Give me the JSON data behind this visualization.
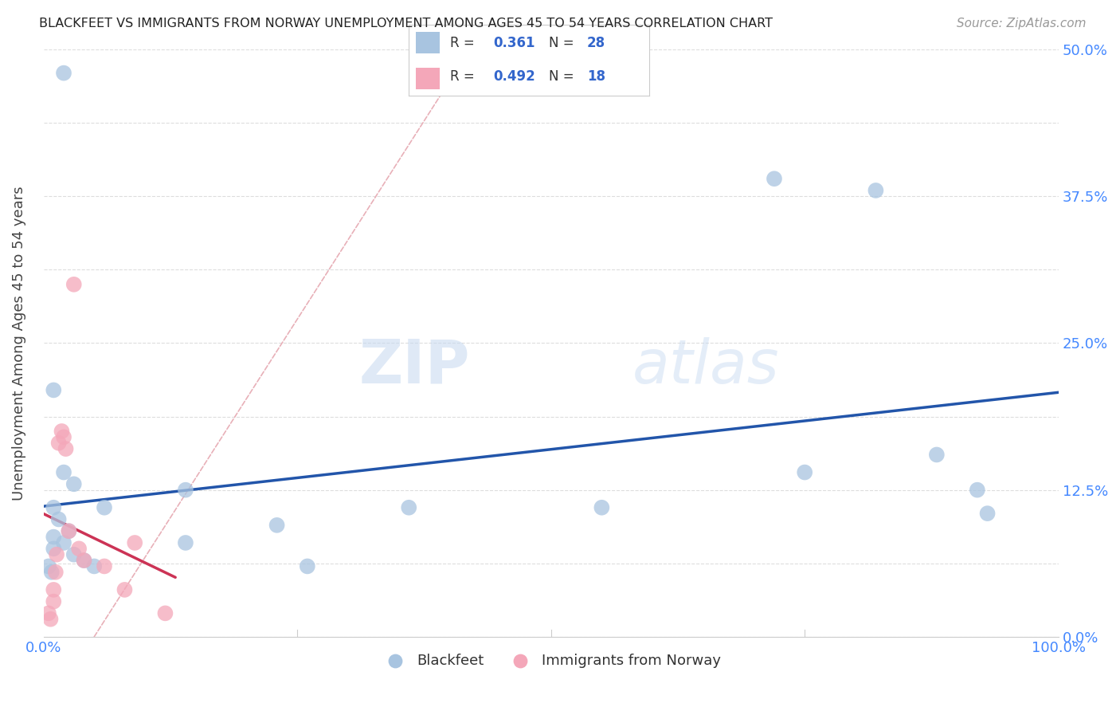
{
  "title": "BLACKFEET VS IMMIGRANTS FROM NORWAY UNEMPLOYMENT AMONG AGES 45 TO 54 YEARS CORRELATION CHART",
  "source": "Source: ZipAtlas.com",
  "ylabel": "Unemployment Among Ages 45 to 54 years",
  "xlim": [
    0,
    1.0
  ],
  "ylim": [
    0,
    0.5
  ],
  "ytick_labels": [
    "0.0%",
    "",
    "12.5%",
    "",
    "25.0%",
    "",
    "37.5%",
    "",
    "50.0%"
  ],
  "ytick_positions": [
    0.0,
    0.0625,
    0.125,
    0.1875,
    0.25,
    0.3125,
    0.375,
    0.4375,
    0.5
  ],
  "watermark_zip": "ZIP",
  "watermark_atlas": "atlas",
  "blue_scatter_x": [
    0.02,
    0.01,
    0.02,
    0.03,
    0.01,
    0.015,
    0.025,
    0.01,
    0.02,
    0.01,
    0.03,
    0.04,
    0.05,
    0.06,
    0.14,
    0.14,
    0.23,
    0.26,
    0.36,
    0.55,
    0.72,
    0.75,
    0.82,
    0.88,
    0.92,
    0.93,
    0.005,
    0.008
  ],
  "blue_scatter_y": [
    0.48,
    0.21,
    0.14,
    0.13,
    0.11,
    0.1,
    0.09,
    0.085,
    0.08,
    0.075,
    0.07,
    0.065,
    0.06,
    0.11,
    0.125,
    0.08,
    0.095,
    0.06,
    0.11,
    0.11,
    0.39,
    0.14,
    0.38,
    0.155,
    0.125,
    0.105,
    0.06,
    0.055
  ],
  "pink_scatter_x": [
    0.005,
    0.007,
    0.01,
    0.01,
    0.012,
    0.013,
    0.015,
    0.018,
    0.02,
    0.022,
    0.025,
    0.03,
    0.035,
    0.04,
    0.06,
    0.08,
    0.09,
    0.12
  ],
  "pink_scatter_y": [
    0.02,
    0.015,
    0.04,
    0.03,
    0.055,
    0.07,
    0.165,
    0.175,
    0.17,
    0.16,
    0.09,
    0.3,
    0.075,
    0.065,
    0.06,
    0.04,
    0.08,
    0.02
  ],
  "blue_color": "#a8c4e0",
  "pink_color": "#f4a7b9",
  "blue_line_color": "#2255aa",
  "pink_line_color": "#cc3355",
  "dash_line_color": "#e8b0b8",
  "background_color": "#ffffff",
  "grid_color": "#dddddd"
}
